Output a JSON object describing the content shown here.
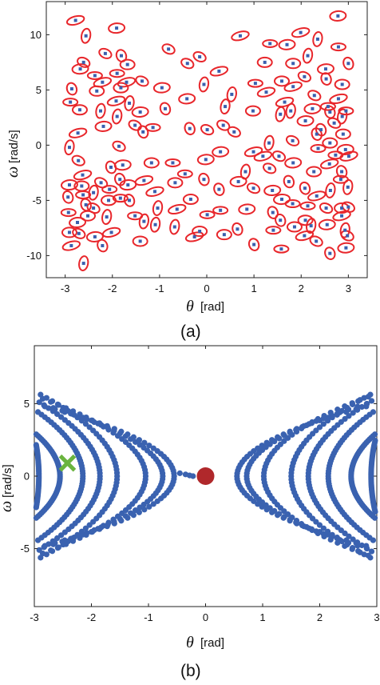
{
  "chart_data": [
    {
      "id": "a",
      "type": "scatter",
      "caption": "(a)",
      "xlabel_symbol": "θ",
      "xlabel_unit": "[rad]",
      "ylabel_symbol": "ω",
      "ylabel_unit": "[rad/s]",
      "xlim": [
        -3.4,
        3.4
      ],
      "ylim": [
        -12,
        13
      ],
      "xticks": [
        -3,
        -2,
        -1,
        0,
        1,
        2,
        3
      ],
      "yticks": [
        -10,
        -5,
        0,
        5,
        10
      ],
      "marker_color": "#3a5fae",
      "ellipse_color": "#e8262b",
      "points": [
        [
          -2.78,
          11.3
        ],
        [
          -2.56,
          9.9
        ],
        [
          -2.61,
          7.5
        ],
        [
          -2.68,
          6.9
        ],
        [
          -2.86,
          5.1
        ],
        [
          -2.89,
          3.9
        ],
        [
          -2.69,
          3.2
        ],
        [
          -2.73,
          1.1
        ],
        [
          -2.91,
          -0.2
        ],
        [
          -2.72,
          -1.4
        ],
        [
          -2.91,
          -3.6
        ],
        [
          -2.94,
          -4.7
        ],
        [
          -2.93,
          -6.1
        ],
        [
          -2.91,
          -7.9
        ],
        [
          -2.87,
          -9.1
        ],
        [
          -2.61,
          -10.7
        ],
        [
          -2.71,
          -8.0
        ],
        [
          -2.74,
          -7.0
        ],
        [
          -2.56,
          -5.4
        ],
        [
          -2.62,
          -4.5
        ],
        [
          -2.65,
          -3.7
        ],
        [
          -2.63,
          -2.7
        ],
        [
          -2.4,
          -4.3
        ],
        [
          -2.4,
          -5.7
        ],
        [
          -2.37,
          -8.3
        ],
        [
          -2.21,
          -9.1
        ],
        [
          -2.37,
          6.3
        ],
        [
          -2.33,
          4.9
        ],
        [
          -2.21,
          5.7
        ],
        [
          -2.25,
          3.1
        ],
        [
          -2.15,
          8.3
        ],
        [
          -2.19,
          1.7
        ],
        [
          -2.03,
          -2.0
        ],
        [
          -2.06,
          -4.0
        ],
        [
          -2.08,
          -5.0
        ],
        [
          -2.02,
          -7.9
        ],
        [
          -2.12,
          -6.5
        ],
        [
          -2.24,
          -3.4
        ],
        [
          -1.91,
          10.6
        ],
        [
          -1.81,
          8.1
        ],
        [
          -1.9,
          6.5
        ],
        [
          -1.82,
          5.2
        ],
        [
          -1.92,
          4.0
        ],
        [
          -1.9,
          2.6
        ],
        [
          -1.86,
          -0.1
        ],
        [
          -1.78,
          -1.8
        ],
        [
          -1.84,
          -3.1
        ],
        [
          -1.83,
          -4.8
        ],
        [
          -1.68,
          7.3
        ],
        [
          -1.7,
          5.7
        ],
        [
          -1.64,
          3.8
        ],
        [
          -1.52,
          1.8
        ],
        [
          -1.67,
          -3.6
        ],
        [
          -1.64,
          -5.0
        ],
        [
          -1.52,
          -6.4
        ],
        [
          -1.41,
          -8.7
        ],
        [
          -1.33,
          -3.2
        ],
        [
          -1.33,
          -6.9
        ],
        [
          -1.37,
          5.8
        ],
        [
          -1.41,
          3.0
        ],
        [
          -1.35,
          1.2
        ],
        [
          -1.14,
          1.6
        ],
        [
          -1.17,
          -1.6
        ],
        [
          -1.1,
          -4.2
        ],
        [
          -1.04,
          -5.7
        ],
        [
          -0.81,
          8.7
        ],
        [
          -0.95,
          5.2
        ],
        [
          -0.88,
          3.3
        ],
        [
          -0.72,
          -1.6
        ],
        [
          -0.67,
          -3.4
        ],
        [
          -0.63,
          -5.8
        ],
        [
          -0.68,
          -7.4
        ],
        [
          -0.41,
          7.4
        ],
        [
          -0.42,
          4.2
        ],
        [
          -0.36,
          1.5
        ],
        [
          -0.46,
          -2.6
        ],
        [
          -0.34,
          -4.9
        ],
        [
          -0.26,
          -8.3
        ],
        [
          -0.06,
          5.5
        ],
        [
          0.01,
          1.4
        ],
        [
          -0.02,
          -1.3
        ],
        [
          -0.06,
          -3.1
        ],
        [
          0.01,
          -6.3
        ],
        [
          -0.15,
          -7.8
        ],
        [
          0.26,
          6.7
        ],
        [
          0.39,
          3.5
        ],
        [
          0.35,
          1.8
        ],
        [
          0.29,
          -0.6
        ],
        [
          0.26,
          -4.0
        ],
        [
          0.29,
          -5.9
        ],
        [
          0.37,
          -8.1
        ],
        [
          0.71,
          9.9
        ],
        [
          0.53,
          4.6
        ],
        [
          0.58,
          1.2
        ],
        [
          0.67,
          -3.3
        ],
        [
          0.65,
          -7.6
        ],
        [
          1.03,
          5.6
        ],
        [
          0.98,
          3.1
        ],
        [
          0.99,
          -0.6
        ],
        [
          0.82,
          -2.4
        ],
        [
          0.99,
          -3.9
        ],
        [
          0.85,
          -5.8
        ],
        [
          1.0,
          -9.0
        ],
        [
          1.34,
          9.2
        ],
        [
          1.23,
          7.5
        ],
        [
          1.26,
          4.8
        ],
        [
          1.32,
          0.2
        ],
        [
          1.33,
          -2.1
        ],
        [
          1.39,
          -4.1
        ],
        [
          1.4,
          -6.1
        ],
        [
          1.41,
          -7.7
        ],
        [
          1.59,
          5.8
        ],
        [
          1.65,
          3.9
        ],
        [
          1.56,
          2.8
        ],
        [
          1.53,
          -1.0
        ],
        [
          1.59,
          -4.9
        ],
        [
          1.56,
          -6.8
        ],
        [
          1.58,
          -9.4
        ],
        [
          1.83,
          7.4
        ],
        [
          1.83,
          5.3
        ],
        [
          1.78,
          3.1
        ],
        [
          1.82,
          0.4
        ],
        [
          1.83,
          -1.6
        ],
        [
          1.74,
          -3.3
        ],
        [
          1.82,
          -5.3
        ],
        [
          1.86,
          -7.4
        ],
        [
          1.99,
          10.2
        ],
        [
          2.14,
          8.1
        ],
        [
          2.07,
          6.2
        ],
        [
          2.09,
          2.2
        ],
        [
          2.08,
          -3.9
        ],
        [
          2.14,
          -5.5
        ],
        [
          2.09,
          -6.8
        ],
        [
          2.07,
          -8.2
        ],
        [
          2.35,
          9.6
        ],
        [
          2.28,
          4.5
        ],
        [
          2.24,
          3.3
        ],
        [
          2.33,
          1.0
        ],
        [
          2.36,
          -0.3
        ],
        [
          2.27,
          -2.4
        ],
        [
          2.33,
          -4.6
        ],
        [
          2.21,
          -7.3
        ],
        [
          2.32,
          -8.7
        ],
        [
          2.52,
          6.9
        ],
        [
          2.53,
          6.0
        ],
        [
          2.57,
          3.5
        ],
        [
          2.61,
          0.2
        ],
        [
          2.6,
          -1.7
        ],
        [
          2.62,
          -4.1
        ],
        [
          2.53,
          -5.7
        ],
        [
          2.55,
          -7.2
        ],
        [
          2.61,
          -9.8
        ],
        [
          2.79,
          8.9
        ],
        [
          2.87,
          5.5
        ],
        [
          2.79,
          4.2
        ],
        [
          2.87,
          2.6
        ],
        [
          2.7,
          2.0
        ],
        [
          2.94,
          -0.4
        ],
        [
          2.86,
          -2.4
        ],
        [
          2.84,
          -3.1
        ],
        [
          2.86,
          -5.7
        ],
        [
          2.86,
          -6.4
        ],
        [
          2.93,
          -7.7
        ],
        [
          2.98,
          -8.2
        ],
        [
          2.78,
          11.7
        ],
        [
          3.0,
          7.4
        ],
        [
          2.95,
          3.1
        ],
        [
          2.89,
          1.0
        ],
        [
          3.01,
          -1.0
        ],
        [
          2.99,
          -3.8
        ],
        [
          3.0,
          -5.6
        ],
        [
          2.95,
          -9.3
        ],
        [
          2.42,
          1.4
        ],
        [
          2.73,
          -0.9
        ],
        [
          -2.52,
          -6.4
        ],
        [
          1.19,
          -1.0
        ],
        [
          -1.09,
          -7.2
        ],
        [
          -0.15,
          8.0
        ],
        [
          1.7,
          9.1
        ],
        [
          2.61,
          3.0
        ]
      ]
    },
    {
      "id": "b",
      "type": "scatter",
      "caption": "(b)",
      "xlabel_symbol": "θ",
      "xlabel_unit": "[rad]",
      "ylabel_symbol": "ω",
      "ylabel_unit": "[rad/s]",
      "xlim": [
        -3,
        3
      ],
      "ylim": [
        -9,
        9
      ],
      "xticks": [
        -3,
        -2,
        -1,
        0,
        1,
        2,
        3
      ],
      "yticks": [
        -5,
        0,
        5
      ],
      "point_color": "#3a62b0",
      "marker_equilibrium": {
        "x": 0,
        "y": 0,
        "color": "#b0282b"
      },
      "marker_start": {
        "x": -2.42,
        "y": 0.9,
        "color": "#6ab43e"
      },
      "left_branches": [
        {
          "vertex": -2.92,
          "edge_omega": 2.8
        },
        {
          "vertex": -2.55,
          "edge_omega": 3.0
        },
        {
          "vertex": -2.15,
          "edge_omega": 4.6
        },
        {
          "vertex": -1.85,
          "edge_omega": 5.3
        },
        {
          "vertex": -1.55,
          "edge_omega": 5.85
        },
        {
          "vertex": -1.05,
          "edge_omega": 5.55
        },
        {
          "vertex": -0.75,
          "edge_omega": 5.1
        },
        {
          "vertex": -0.55,
          "edge_omega": 5.0
        }
      ],
      "right_branches": [
        {
          "vertex": 0.55,
          "edge_omega": 5.0
        },
        {
          "vertex": 0.72,
          "edge_omega": 5.2
        },
        {
          "vertex": 1.02,
          "edge_omega": 5.7
        },
        {
          "vertex": 1.5,
          "edge_omega": 5.85
        },
        {
          "vertex": 1.8,
          "edge_omega": 5.4
        },
        {
          "vertex": 2.15,
          "edge_omega": 4.6
        },
        {
          "vertex": 2.55,
          "edge_omega": 3.0
        },
        {
          "vertex": 2.9,
          "edge_omega": 2.9
        }
      ]
    }
  ]
}
